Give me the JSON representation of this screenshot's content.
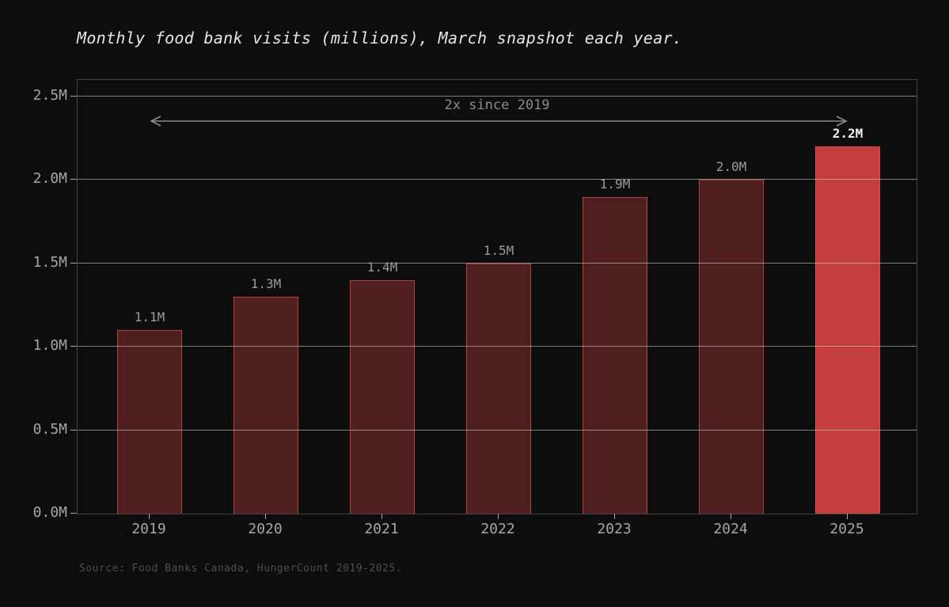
{
  "source_note": "Source: Food Banks Canada, HungerCount 2019-2025.",
  "chart_data": {
    "type": "bar",
    "title": "Monthly food bank visits (millions), March snapshot each year.",
    "categories": [
      "2019",
      "2020",
      "2021",
      "2022",
      "2023",
      "2024",
      "2025"
    ],
    "values": [
      1.1,
      1.3,
      1.4,
      1.5,
      1.9,
      2.0,
      2.2
    ],
    "bar_labels": [
      "1.1M",
      "1.3M",
      "1.4M",
      "1.5M",
      "1.9M",
      "2.0M",
      "2.2M"
    ],
    "highlight_index": 6,
    "xlabel": "",
    "ylabel": "",
    "ylim": [
      0,
      2.6
    ],
    "yticks": [
      0,
      0.5,
      1.0,
      1.5,
      2.0,
      2.5
    ],
    "ytick_labels": [
      "0.0M",
      "0.5M",
      "1.0M",
      "1.5M",
      "2.0M",
      "2.5M"
    ],
    "grid": "horizontal, drawn over bars",
    "legend": "none",
    "annotation": {
      "text": "2x since 2019",
      "arrow": "double-headed, spans 2019 bar center to 2025 bar center at ~2.35M"
    },
    "colors": {
      "background": "#0d0d0d",
      "bar_fill": "#4e1f1e",
      "bar_edge": "#b2423d",
      "highlight_fill": "#c43d3d",
      "highlight_edge": "#d14d47",
      "grid_line": "rgba(205,205,205,0.6)",
      "spine": "#464646",
      "title_text": "#e8e6e2",
      "tick_text": "#a6a6a6",
      "bar_label_text": "#9c9c9c",
      "highlight_label_text": "#f0f0f0",
      "annotation_text": "#8c8c84",
      "source_text": "#4e4e4e"
    }
  }
}
